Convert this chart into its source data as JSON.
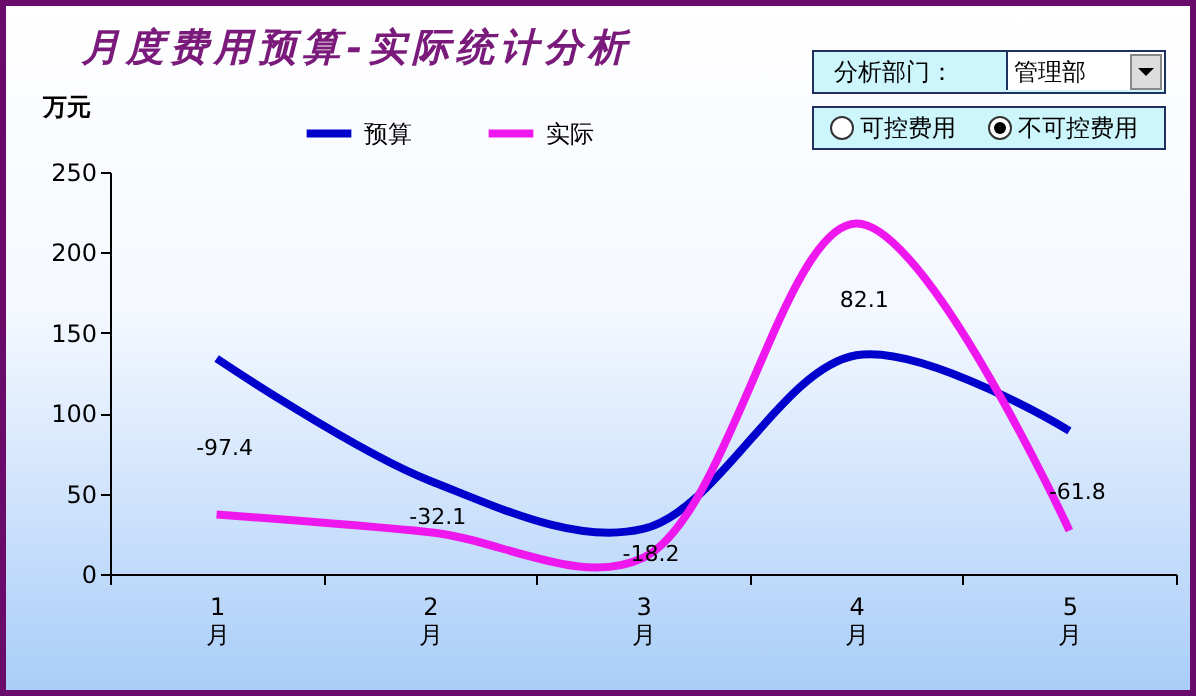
{
  "chart_data": {
    "type": "line",
    "title": "月度费用预算-实际统计分析",
    "ylabel": "万元",
    "categories": [
      "1\n月",
      "2\n月",
      "3\n月",
      "4\n月",
      "5\n月"
    ],
    "series": [
      {
        "name": "预算",
        "color": "#0000cc",
        "values": [
          134,
          58,
          28,
          136,
          89
        ]
      },
      {
        "name": "实际",
        "color": "#ee18ee",
        "values": [
          37,
          26,
          10,
          218,
          27
        ]
      }
    ],
    "ylim": [
      0,
      250
    ],
    "yticks": [
      0,
      50,
      100,
      150,
      200,
      250
    ],
    "grid": false,
    "legend": "top",
    "marker": "none",
    "line_style": "solid",
    "annotations": [
      "-97.4",
      "-32.1",
      "-18.2",
      "82.1",
      "-61.8",
      "分析部门：",
      "管理部",
      "可控费用",
      "不可控费用"
    ]
  }
}
